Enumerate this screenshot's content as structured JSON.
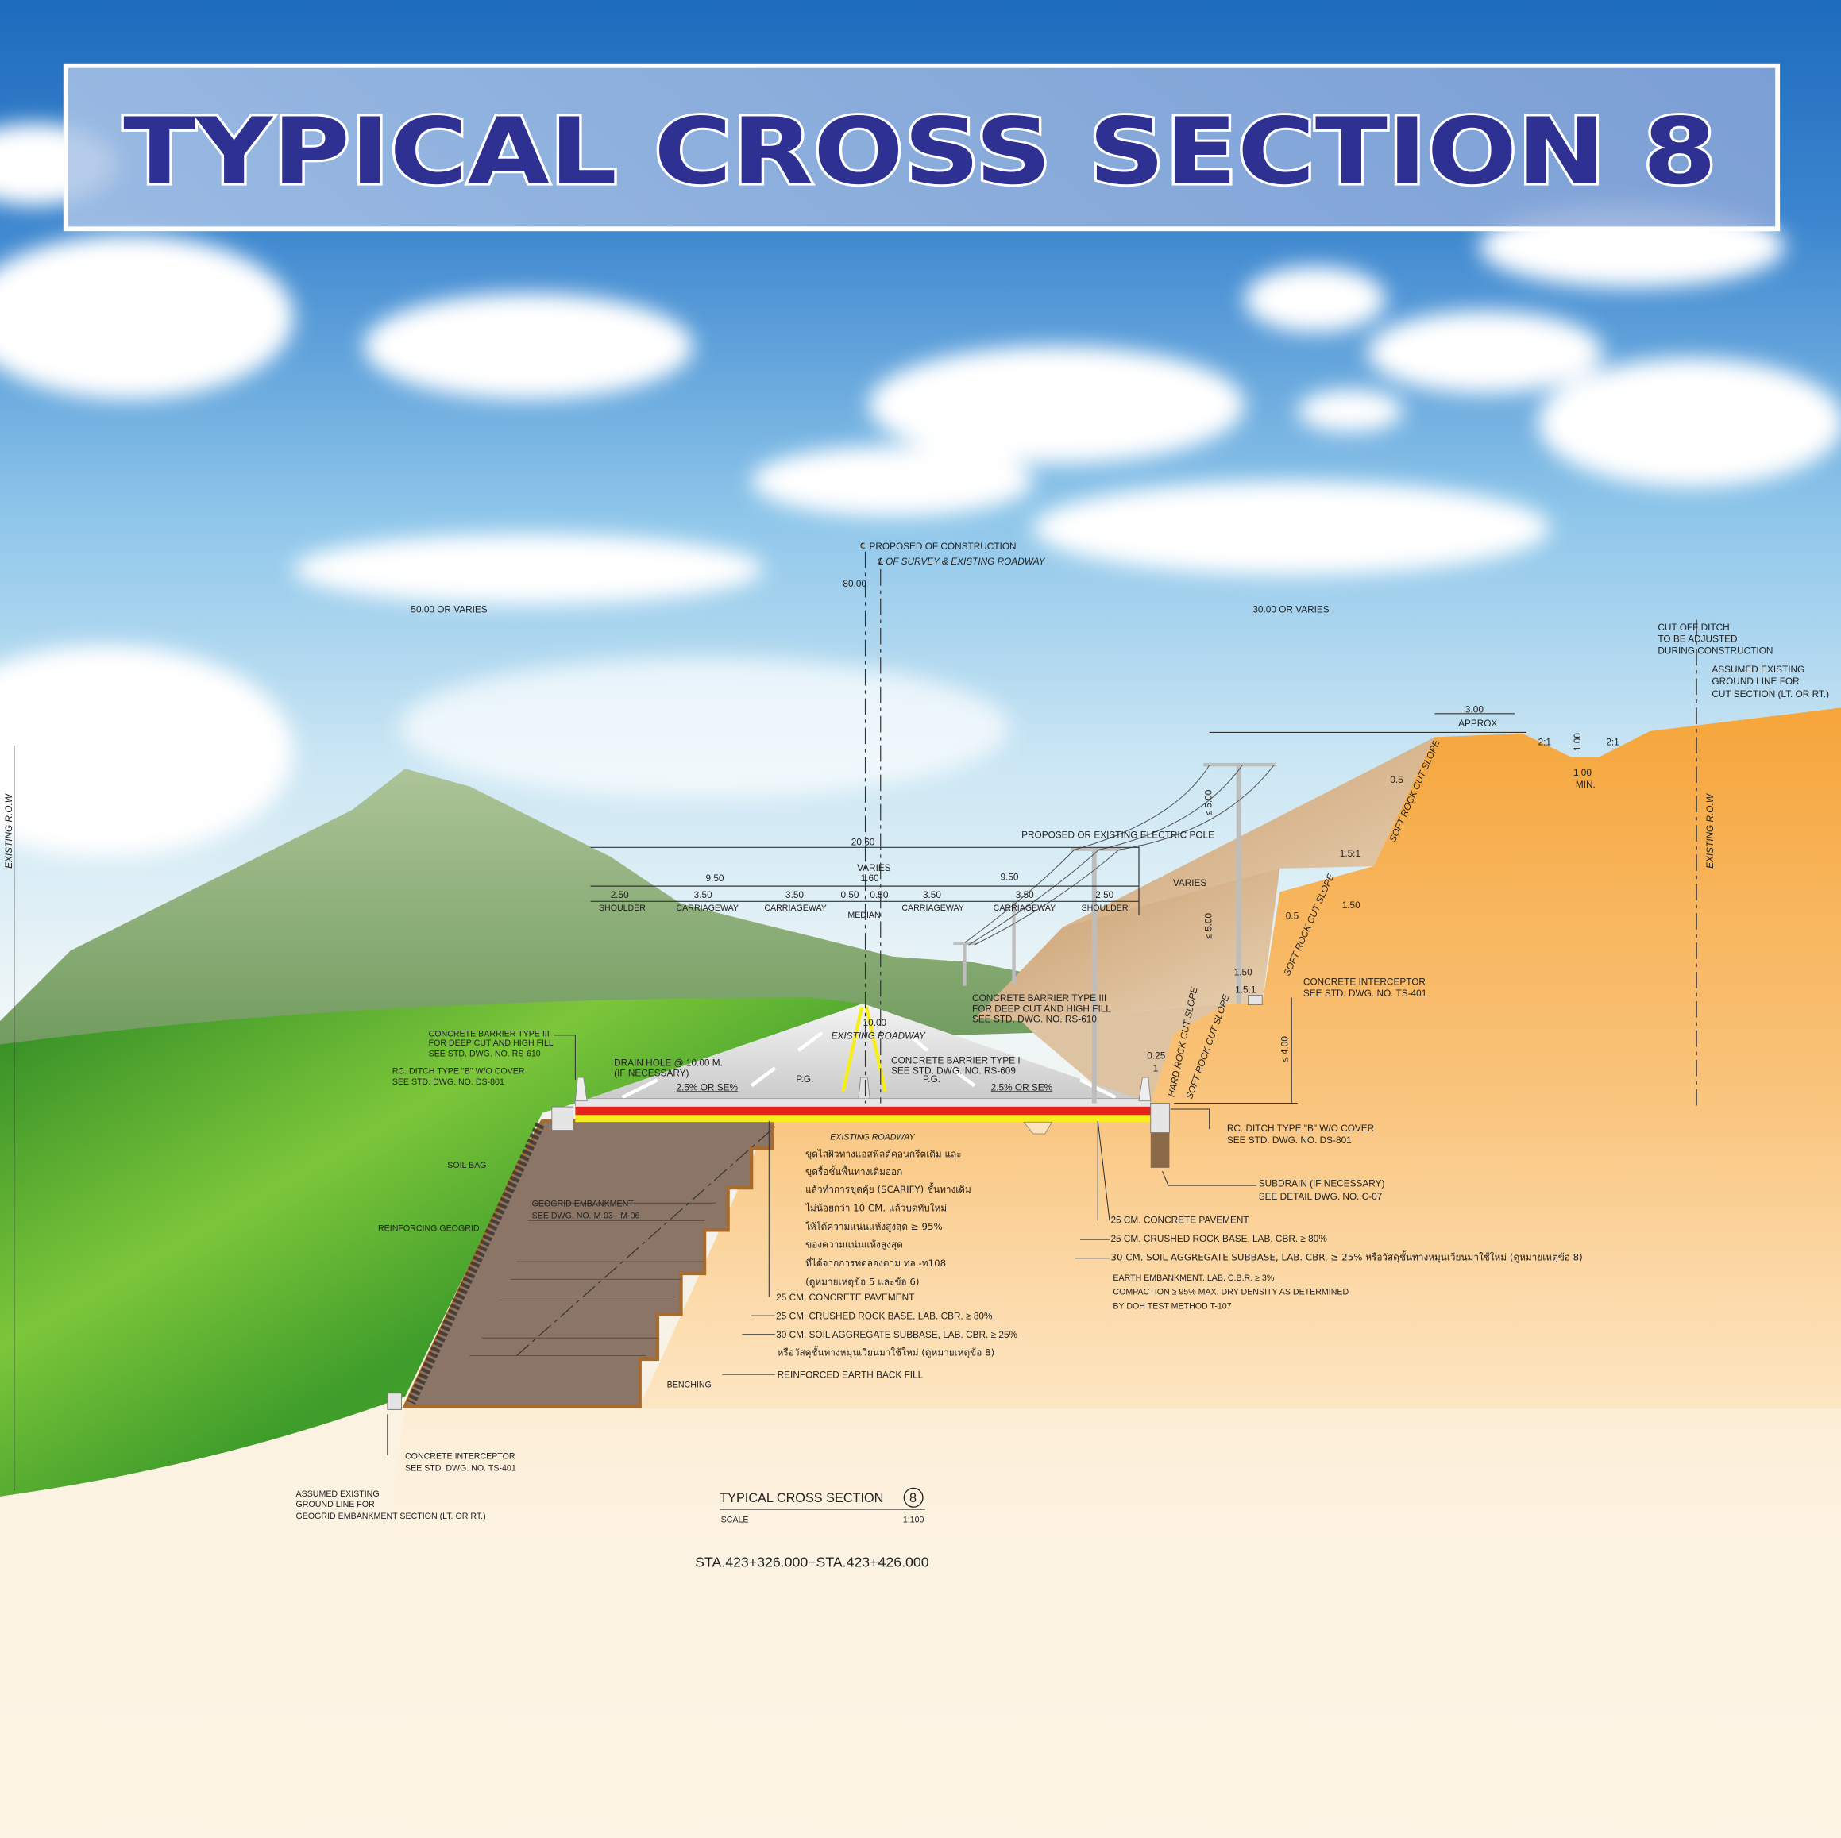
{
  "title": "TYPICAL CROSS SECTION 8",
  "colors": {
    "title_text": "#2e3192",
    "sky_top": "#1d6bbd",
    "cut_ground": "#f6a53a",
    "embankment": "#8b7566",
    "pavement_red": "#e52420",
    "pavement_yellow": "#f7ec1c",
    "grass": "#4caa2c"
  },
  "centerline": {
    "proposed": "℄ PROPOSED OF CONSTRUCTION",
    "survey": "℄ OF SURVEY & EXISTING ROADWAY",
    "row_width": "80.00"
  },
  "row": {
    "left_width": "50.00 OR VARIES",
    "right_width": "30.00 OR VARIES",
    "left_label": "EXISTING R.O.W",
    "right_label": "EXISTING R.O.W"
  },
  "cut_ditch": {
    "note": [
      "CUT OFF DITCH",
      "TO BE ADJUSTED",
      "DURING CONSTRUCTION"
    ],
    "ground_note": [
      "ASSUMED EXISTING",
      "GROUND LINE FOR",
      "CUT SECTION (LT. OR RT.)"
    ],
    "berm_width": "3.00",
    "berm_approx": "APPROX",
    "slope_left": "2:1",
    "slope_right": "2:1",
    "depth": "1.00",
    "bottom_width": "1.00",
    "bottom_min": "MIN."
  },
  "dimensions": {
    "total": "20.60",
    "median_varies": "VARIES",
    "median_width": "1.60",
    "left_half": "9.50",
    "right_half": "9.50",
    "segments": [
      "2.50",
      "3.50",
      "3.50",
      "0.50",
      "0.50",
      "3.50",
      "3.50",
      "2.50"
    ],
    "segment_labels": [
      "SHOULDER",
      "CARRIAGEWAY",
      "CARRIAGEWAY",
      "MEDIAN",
      "CARRIAGEWAY",
      "CARRIAGEWAY",
      "SHOULDER"
    ]
  },
  "cut_slopes": {
    "electric_pole": "PROPOSED OR EXISTING ELECTRIC POLE",
    "pole_clearance": "≤ 5.00",
    "pole_clearance_2": "≤ 5.00",
    "varies": "VARIES",
    "bench_slope_1": "1.5:1",
    "bench_slope_2": "1.5:1",
    "bench_width_1": "1.50",
    "bench_width_2": "1.50",
    "ratio_05": "0.5",
    "ratio_05b": "0.5",
    "ratio_025": "0.25",
    "ratio_1": "1",
    "soft_rock": "SOFT ROCK CUT SLOPE",
    "hard_rock": "HARD ROCK CUT SLOPE",
    "max_height": "≤ 4.00",
    "interceptor": [
      "CONCRETE INTERCEPTOR",
      "SEE STD. DWG. NO. TS-401"
    ]
  },
  "roadway": {
    "barrier_iii_right": [
      "CONCRETE BARRIER TYPE III",
      "FOR DEEP CUT AND HIGH FILL",
      "SEE STD. DWG. NO. RS-610"
    ],
    "barrier_iii_left": [
      "CONCRETE BARRIER TYPE III",
      "FOR DEEP CUT AND HIGH FILL",
      "SEE STD. DWG. NO. RS-610"
    ],
    "existing_width": "10.00",
    "existing_roadway": "EXISTING ROADWAY",
    "drain_hole": [
      "DRAIN HOLE @ 10.00 M.",
      "(IF NECESSARY)"
    ],
    "barrier_i": [
      "CONCRETE BARRIER TYPE I",
      "SEE STD. DWG. NO. RS-609"
    ],
    "pg": "P.G.",
    "crossfall": "2.5% OR SE%",
    "ditch_left": [
      "RC. DITCH TYPE \"B\" W/O COVER",
      "SEE STD. DWG. NO. DS-801"
    ],
    "ditch_right": [
      "RC. DITCH TYPE \"B\" W/O COVER",
      "SEE STD. DWG. NO. DS-801"
    ],
    "subdrain": [
      "SUBDRAIN (IF NECESSARY)",
      "SEE DETAIL DWG. NO. C-07"
    ]
  },
  "embankment": {
    "soil_bag": "SOIL BAG",
    "reinforcing": "REINFORCING GEOGRID",
    "geogrid": [
      "GEOGRID EMBANKMENT",
      "SEE DWG. NO. M-03 - M-06"
    ],
    "existing_roadway": "EXISTING ROADWAY",
    "thai_note": [
      "ขุดไสผิวทางแอสฟัลต์คอนกรีตเดิม และ",
      "ขุดรื้อชั้นพื้นทางเดิมออก",
      "แล้วทำการขุดคุ้ย (SCARIFY) ชั้นทางเดิม",
      "ไม่น้อยกว่า 10 CM. แล้วบดทับใหม่",
      "ให้ได้ความแน่นแห้งสูงสุด ≥ 95%",
      "ของความแน่นแห้งสูงสุด",
      "ที่ได้จากการทดลองตาม ทล.-ท108",
      "(ดูหมายเหตุข้อ 5 และข้อ 6)"
    ],
    "layers": [
      "25 CM. CONCRETE PAVEMENT",
      "25 CM. CRUSHED ROCK BASE, LAB. CBR. ≥ 80%",
      "30 CM. SOIL AGGREGATE SUBBASE, LAB. CBR. ≥ 25%",
      "หรือวัสดุชั้นทางหมุนเวียนมาใช้ใหม่ (ดูหมายเหตุข้อ 8)"
    ],
    "backfill": "REINFORCED EARTH BACK FILL",
    "benching": "BENCHING",
    "interceptor": [
      "CONCRETE INTERCEPTOR",
      "SEE STD. DWG. NO. TS-401"
    ],
    "ground_note": [
      "ASSUMED EXISTING",
      "GROUND LINE FOR",
      "GEOGRID EMBANKMENT SECTION (LT. OR RT.)"
    ]
  },
  "cut_layers": [
    "25 CM. CONCRETE PAVEMENT",
    "25 CM. CRUSHED ROCK BASE, LAB. CBR. ≥ 80%",
    "30 CM. SOIL AGGREGATE SUBBASE, LAB. CBR. ≥ 25% หรือวัสดุชั้นทางหมุนเวียนมาใช้ใหม่ (ดูหมายเหตุข้อ 8)"
  ],
  "earth_embankment": [
    "EARTH EMBANKMENT. LAB. C.B.R. ≥ 3%",
    "COMPACTION ≥ 95% MAX. DRY DENSITY AS DETERMINED",
    "BY DOH TEST METHOD T-107"
  ],
  "caption": {
    "title": "TYPICAL CROSS SECTION",
    "number": "8",
    "scale_label": "SCALE",
    "scale": "1:100",
    "station": "STA.423+326.000−STA.423+426.000"
  }
}
